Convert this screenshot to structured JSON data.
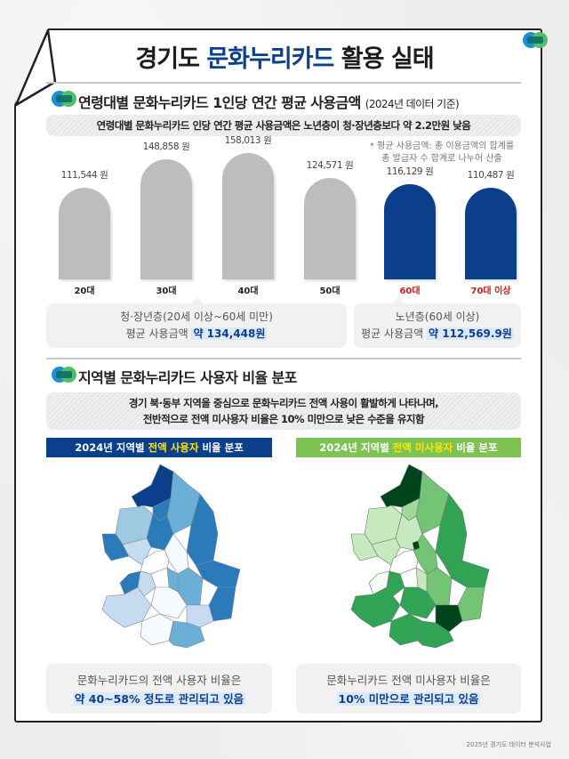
{
  "header": {
    "title_prefix": "경기도 ",
    "title_accent": "문화누리카드",
    "title_suffix": " 활용 실태",
    "logo": "gyeonggi-logo-icon"
  },
  "section1": {
    "title": "연령대별 문화누리카드 1인당 연간 평균 사용금액 ",
    "title_sub": "(2024년 데이터 기준)",
    "summary": "연령대별 문화누리카드 인당 연간 평균 사용금액은 노년층이 청·장년층보다 약 2.2만원 낮음",
    "note_line1": "* 평균 사용금액: 총 이용금액의 합계를",
    "note_line2": "총 발급자 수 합계로 나누어 산출",
    "bars": [
      {
        "label": "20대",
        "value_text": "111,544 원",
        "value": 111544,
        "color": "#bdbdbd",
        "label_color": "normal"
      },
      {
        "label": "30대",
        "value_text": "148,858 원",
        "value": 148858,
        "color": "#bdbdbd",
        "label_color": "normal"
      },
      {
        "label": "40대",
        "value_text": "158,013 원",
        "value": 158013,
        "color": "#bdbdbd",
        "label_color": "normal"
      },
      {
        "label": "50대",
        "value_text": "124,571 원",
        "value": 124571,
        "color": "#bdbdbd",
        "label_color": "normal"
      },
      {
        "label": "60대",
        "value_text": "116,129 원",
        "value": 116129,
        "color": "#0b3f8c",
        "label_color": "red"
      },
      {
        "label": "70대 이상",
        "value_text": "110,487 원",
        "value": 110487,
        "color": "#0b3f8c",
        "label_color": "red"
      }
    ],
    "group_young": {
      "line1": "청·장년층(20세 이상~60세 미만)",
      "line2_prefix": "평균 사용금액 ",
      "line2_value": "약 134,448원"
    },
    "group_old": {
      "line1": "노년층(60세 이상)",
      "line2_prefix": "평균 사용금액 ",
      "line2_value": "약 112,569.9원"
    }
  },
  "section2": {
    "title": "지역별 문화누리카드 사용자 비율 분포",
    "summary_line1": "경기 북·동부 지역을 중심으로 문화누리카드 전액 사용이 활발하게 나타나며,",
    "summary_line2": "전반적으로 전액 미사용자 비율은 10% 미만으로 낮은 수준을 유지함",
    "map_left": {
      "head_prefix": "2024년 지역별 ",
      "head_accent": "전액 사용자",
      "head_suffix": " 비율 분포",
      "head_color": "#0b3f8c",
      "caption_line1": "문화누리카드의 전액 사용자 비율은",
      "caption_line2": "약 40~58% 정도로 관리되고 있음"
    },
    "map_right": {
      "head_prefix": "2024년 지역별 ",
      "head_accent": "전액 미사용자",
      "head_suffix": " 비율 분포",
      "head_color": "#7ec352",
      "caption_line1": "문화누리카드 전액 미사용자 비율은",
      "caption_line2": "10% 미만으로 관리되고 있음"
    }
  },
  "footer": "2025년 경기도 데이터 분석사업",
  "chart_data": [
    {
      "type": "bar",
      "title": "연령대별 문화누리카드 1인당 연간 평균 사용금액 (2024년 데이터 기준)",
      "categories": [
        "20대",
        "30대",
        "40대",
        "50대",
        "60대",
        "70대 이상"
      ],
      "values": [
        111544,
        148858,
        158013,
        124571,
        116129,
        110487
      ],
      "unit": "원",
      "xlabel": "",
      "ylabel": "",
      "grid": false,
      "highlight": [
        "60대",
        "70대 이상"
      ],
      "annotations": [
        "청·장년층(20세 이상~60세 미만) 평균 사용금액 약 134,448원",
        "노년층(60세 이상) 평균 사용금액 약 112,569.9원"
      ]
    },
    {
      "type": "heatmap",
      "title": "2024년 지역별 전액 사용자 비율 분포",
      "description": "Choropleth map of Gyeonggi-do; darker blue in north/east; range approx 40~58%"
    },
    {
      "type": "heatmap",
      "title": "2024년 지역별 전액 미사용자 비율 분포",
      "description": "Choropleth map of Gyeonggi-do; green shades; below 10%"
    }
  ]
}
